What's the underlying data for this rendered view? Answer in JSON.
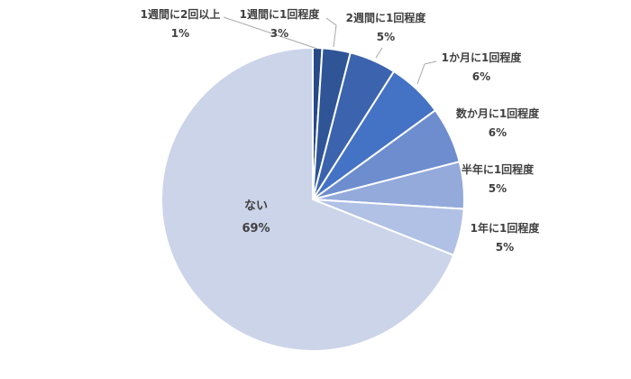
{
  "chart_data": {
    "type": "pie",
    "title": "",
    "legend": "none",
    "start_angle_deg": 0,
    "direction": "clockwise",
    "label_color": "#404040",
    "leader_line_color": "#A6A6A6",
    "slice_border_color": "#FFFFFF",
    "categories": [
      "1週間に2回以上",
      "1週間に1回程度",
      "2週間に1回程度",
      "1か月に1回程度",
      "数か月に1回程度",
      "半年に1回程度",
      "1年に1回程度",
      "ない"
    ],
    "values": [
      1,
      3,
      5,
      6,
      6,
      5,
      5,
      69
    ],
    "slices": [
      {
        "name": "1週間に2回以上",
        "pct": "1%",
        "value": 1,
        "color": "#27498A"
      },
      {
        "name": "1週間に1回程度",
        "pct": "3%",
        "value": 3,
        "color": "#2F5597"
      },
      {
        "name": "2週間に1回程度",
        "pct": "5%",
        "value": 5,
        "color": "#3B63AE"
      },
      {
        "name": "1か月に1回程度",
        "pct": "6%",
        "value": 6,
        "color": "#4472C4"
      },
      {
        "name": "数か月に1回程度",
        "pct": "6%",
        "value": 6,
        "color": "#6D8DCF"
      },
      {
        "name": "半年に1回程度",
        "pct": "5%",
        "value": 5,
        "color": "#93AADB"
      },
      {
        "name": "1年に1回程度",
        "pct": "5%",
        "value": 5,
        "color": "#B1C1E5"
      },
      {
        "name": "ない",
        "pct": "69%",
        "value": 69,
        "color": "#CBD4E9"
      }
    ]
  }
}
